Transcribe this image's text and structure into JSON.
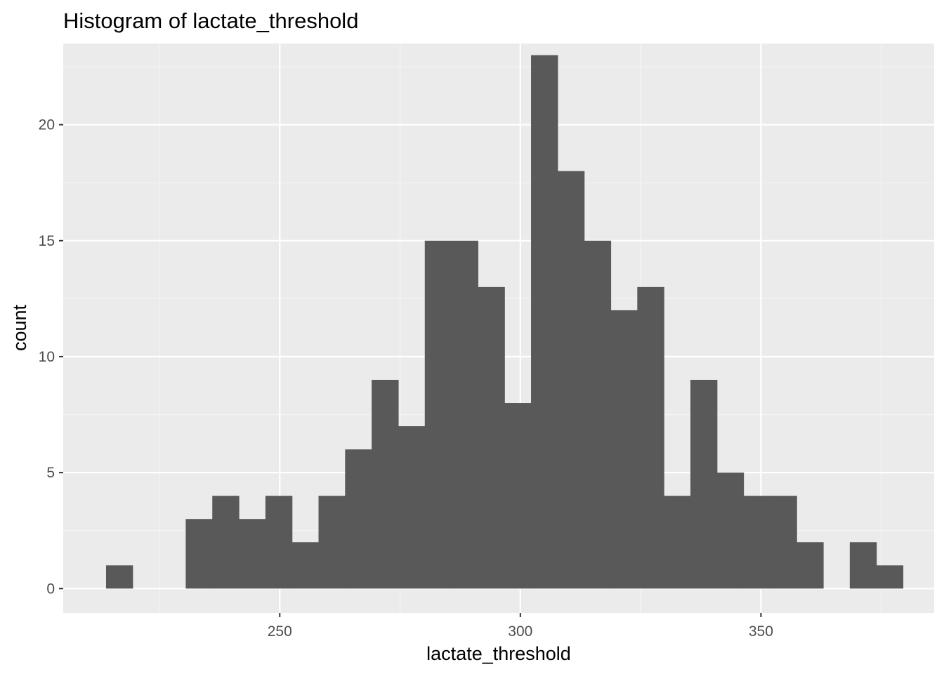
{
  "colors": {
    "panel_background": "#ebebeb",
    "grid_major": "#ffffff",
    "grid_minor": "#f5f5f5",
    "bar_fill": "#595959",
    "tick_label": "#4d4d4d",
    "text": "#000000"
  },
  "chart_data": {
    "type": "bar",
    "subtype": "histogram",
    "title": "Histogram of lactate_threshold",
    "xlabel": "lactate_threshold",
    "ylabel": "count",
    "xlim": [
      205,
      386
    ],
    "ylim": [
      -1.05,
      23.5
    ],
    "x_ticks": [
      250,
      300,
      350
    ],
    "x_tick_labels": [
      "250",
      "300",
      "350"
    ],
    "x_minor_ticks": [
      225,
      275,
      325,
      375
    ],
    "y_ticks": [
      0,
      5,
      10,
      15,
      20
    ],
    "y_tick_labels": [
      "0",
      "5",
      "10",
      "15",
      "20"
    ],
    "y_minor_ticks": [
      2.5,
      7.5,
      12.5,
      17.5,
      22.5
    ],
    "grid": true,
    "legend": "none",
    "bin_start": 213.9,
    "bin_width": 5.52,
    "counts": [
      1,
      0,
      0,
      3,
      4,
      3,
      4,
      2,
      4,
      6,
      9,
      7,
      15,
      15,
      13,
      8,
      23,
      18,
      15,
      12,
      13,
      4,
      9,
      5,
      4,
      4,
      2,
      0,
      2,
      1
    ]
  }
}
